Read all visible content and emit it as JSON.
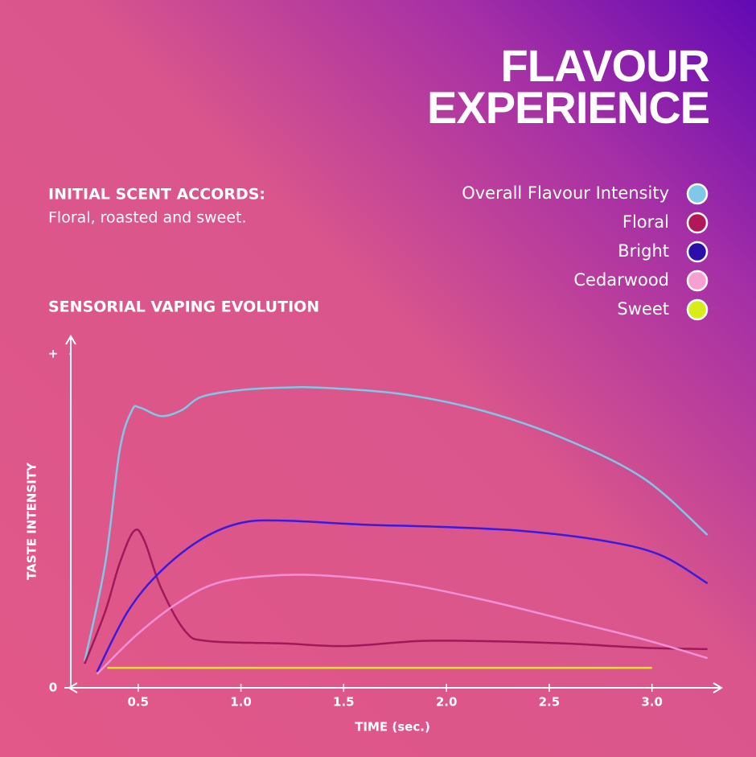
{
  "chart_data": {
    "type": "line",
    "title_lines": [
      "FLAVOUR",
      "EXPERIENCE"
    ],
    "intro_heading": "INITIAL SCENT ACCORDS:",
    "intro_text": "Floral, roasted and sweet.",
    "subtitle": "SENSORIAL VAPING EVOLUTION",
    "x_label": "TIME (sec.)",
    "y_label": "TASTE INTENSITY",
    "xlim": [
      0.18,
      3.33
    ],
    "ylim": [
      0,
      100
    ],
    "xticks": [
      0.5,
      {
        "value": 1,
        "label": "1.0"
      },
      1.5,
      {
        "value": 2,
        "label": "2.0"
      },
      2.5,
      {
        "value": 3,
        "label": "3.0"
      }
    ],
    "yticks": [
      0,
      {
        "value": 100,
        "label": "+"
      }
    ],
    "series": [
      {
        "name": "Overall Flavour Intensity",
        "color": "#7ec8e8",
        "legend_color": "#7ec8e8",
        "x": [
          0.24,
          0.34,
          0.41,
          0.47,
          0.51,
          0.61,
          0.71,
          0.81,
          1.0,
          1.2,
          1.39,
          1.78,
          2.17,
          2.57,
          2.96,
          3.27
        ],
        "values": [
          8.0,
          37.3,
          71.1,
          83.1,
          83.9,
          81.4,
          83.1,
          87.2,
          89.2,
          89.9,
          89.9,
          88.0,
          83.1,
          74.7,
          62.7,
          45.8
        ]
      },
      {
        "name": "Floral",
        "color": "#a0195a",
        "legend_color": "#b0185a",
        "x": [
          0.24,
          0.34,
          0.41,
          0.48,
          0.53,
          0.61,
          0.73,
          0.84,
          1.2,
          1.51,
          1.86,
          2.17,
          2.57,
          2.96,
          3.27
        ],
        "values": [
          7.2,
          22.9,
          37.3,
          47.0,
          44.1,
          30.1,
          16.9,
          14.0,
          13.3,
          12.5,
          14.0,
          14.0,
          13.3,
          12.0,
          11.6
        ]
      },
      {
        "name": "Bright",
        "color": "#3a1adf",
        "legend_color": "#2a0fa8",
        "x": [
          0.3,
          0.45,
          0.61,
          0.81,
          1.0,
          1.2,
          1.59,
          1.98,
          2.37,
          2.76,
          3.04,
          3.27
        ],
        "values": [
          4.8,
          22.9,
          34.9,
          44.6,
          49.4,
          50.1,
          48.9,
          48.2,
          47.0,
          44.1,
          39.8,
          31.3
        ]
      },
      {
        "name": "Cedarwood",
        "color": "#f58fd8",
        "legend_color": "#f5a0d0",
        "x": [
          0.3,
          0.49,
          0.69,
          0.88,
          1.12,
          1.39,
          1.78,
          2.17,
          2.57,
          2.96,
          3.27
        ],
        "values": [
          4.1,
          15.7,
          25.3,
          31.3,
          33.5,
          33.7,
          31.3,
          26.5,
          20.5,
          14.5,
          8.9
        ]
      },
      {
        "name": "Sweet",
        "color": "#e5e81a",
        "legend_color": "#d8ec1a",
        "x": [
          0.35,
          3.0
        ],
        "values": [
          6.0,
          6.0
        ]
      }
    ]
  }
}
